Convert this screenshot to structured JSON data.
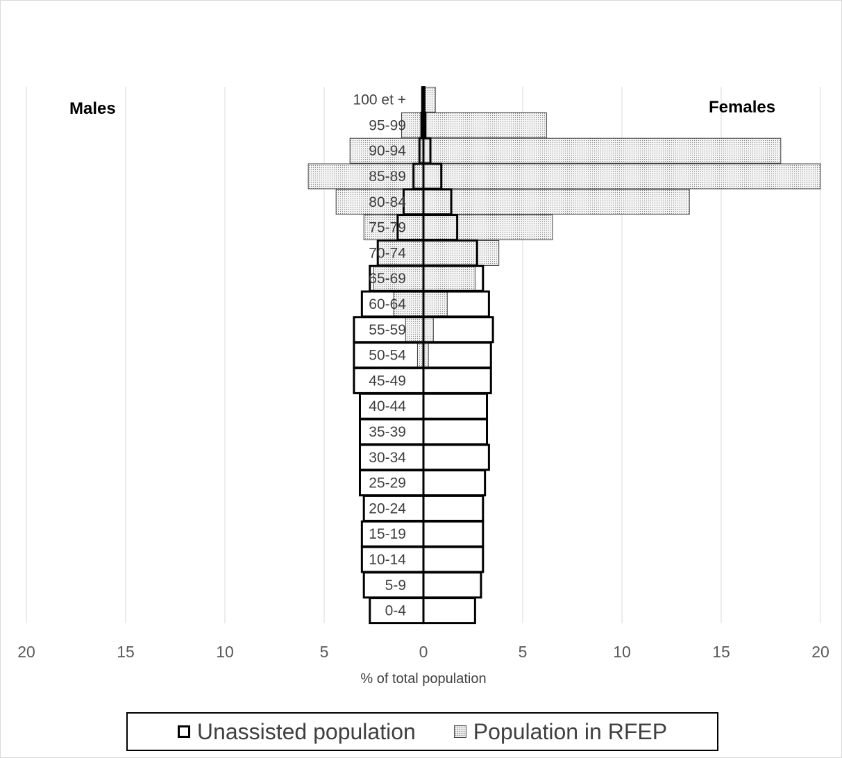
{
  "chart_data": {
    "type": "bar",
    "orientation": "horizontal",
    "subtype": "population-pyramid",
    "xlabel": "% of total population",
    "left_label": "Males",
    "right_label": "Females",
    "xlim": [
      -20,
      20
    ],
    "xticks": [
      -20,
      -15,
      -10,
      -5,
      0,
      5,
      10,
      15,
      20
    ],
    "xtick_labels": [
      "20",
      "15",
      "10",
      "5",
      "0",
      "5",
      "10",
      "15",
      "20"
    ],
    "grid": true,
    "legend_position": "bottom",
    "categories": [
      "0-4",
      "5-9",
      "10-14",
      "15-19",
      "20-24",
      "25-29",
      "30-34",
      "35-39",
      "40-44",
      "45-49",
      "50-54",
      "55-59",
      "60-64",
      "65-69",
      "70-74",
      "75-79",
      "80-84",
      "85-89",
      "90-94",
      "95-99",
      "100 et +"
    ],
    "series": [
      {
        "name": "Unassisted population",
        "style": "outline",
        "males": [
          2.7,
          3.0,
          3.1,
          3.1,
          3.0,
          3.2,
          3.2,
          3.2,
          3.2,
          3.5,
          3.5,
          3.5,
          3.1,
          2.7,
          2.3,
          1.3,
          1.0,
          0.5,
          0.2,
          0.1,
          0.05
        ],
        "females": [
          2.6,
          2.9,
          3.0,
          3.0,
          3.0,
          3.1,
          3.3,
          3.2,
          3.2,
          3.4,
          3.4,
          3.5,
          3.3,
          3.0,
          2.7,
          1.7,
          1.4,
          0.9,
          0.35,
          0.1,
          0.05
        ]
      },
      {
        "name": "Population in RFEP",
        "style": "dotted",
        "males": [
          0,
          0,
          0,
          0,
          0,
          0,
          0,
          0,
          0,
          0,
          0.3,
          0.9,
          1.5,
          2.5,
          2.3,
          3.0,
          4.4,
          5.8,
          3.7,
          1.1,
          0.1
        ],
        "females": [
          0,
          0,
          0,
          0,
          0,
          0,
          0,
          0,
          0,
          0,
          0.25,
          0.5,
          1.2,
          2.6,
          3.8,
          6.5,
          13.4,
          20.0,
          18.0,
          6.2,
          0.6
        ]
      }
    ]
  },
  "colors": {
    "unassisted_outline": "#000000",
    "rfep_fill": "#f4f4f4",
    "rfep_dots": "#7f7f7f",
    "grid": "#d9d9d9",
    "text": "#404040"
  }
}
